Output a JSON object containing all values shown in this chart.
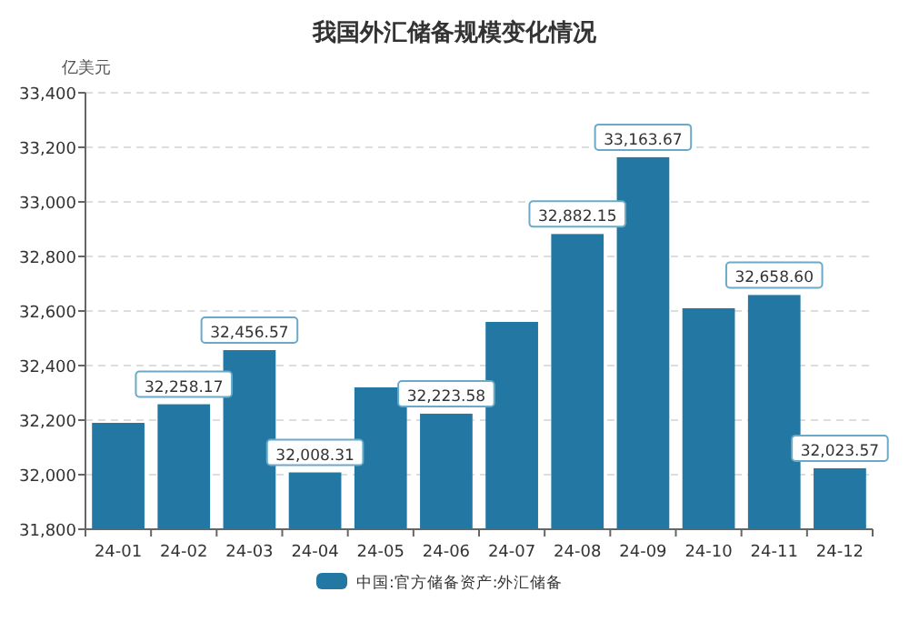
{
  "chart_data": {
    "type": "bar",
    "title": "我国外汇储备规模变化情况",
    "ylabel": "亿美元",
    "categories": [
      "24-01",
      "24-02",
      "24-03",
      "24-04",
      "24-05",
      "24-06",
      "24-07",
      "24-08",
      "24-09",
      "24-10",
      "24-11",
      "24-12"
    ],
    "series": [
      {
        "name": "中国:官方储备资产:外汇储备",
        "color": "#2277a3",
        "values": [
          32190,
          32258.17,
          32456.57,
          32008.31,
          32320,
          32223.58,
          32560,
          32882.15,
          33163.67,
          32610,
          32658.6,
          32023.57
        ],
        "value_labels": [
          null,
          "32,258.17",
          "32,456.57",
          "32,008.31",
          null,
          "32,223.58",
          null,
          "32,882.15",
          "33,163.67",
          null,
          "32,658.60",
          "32,023.57"
        ]
      }
    ],
    "ylim": [
      31800,
      33400
    ],
    "yticks": [
      {
        "value": 31800,
        "label": "31,800"
      },
      {
        "value": 32000,
        "label": "32,000"
      },
      {
        "value": 32200,
        "label": "32,200"
      },
      {
        "value": 32400,
        "label": "32,400"
      },
      {
        "value": 32600,
        "label": "32,600"
      },
      {
        "value": 32800,
        "label": "32,800"
      },
      {
        "value": 33000,
        "label": "33,000"
      },
      {
        "value": 33200,
        "label": "33,200"
      },
      {
        "value": 33400,
        "label": "33,400"
      }
    ],
    "grid": "y",
    "legend": "bottom"
  }
}
